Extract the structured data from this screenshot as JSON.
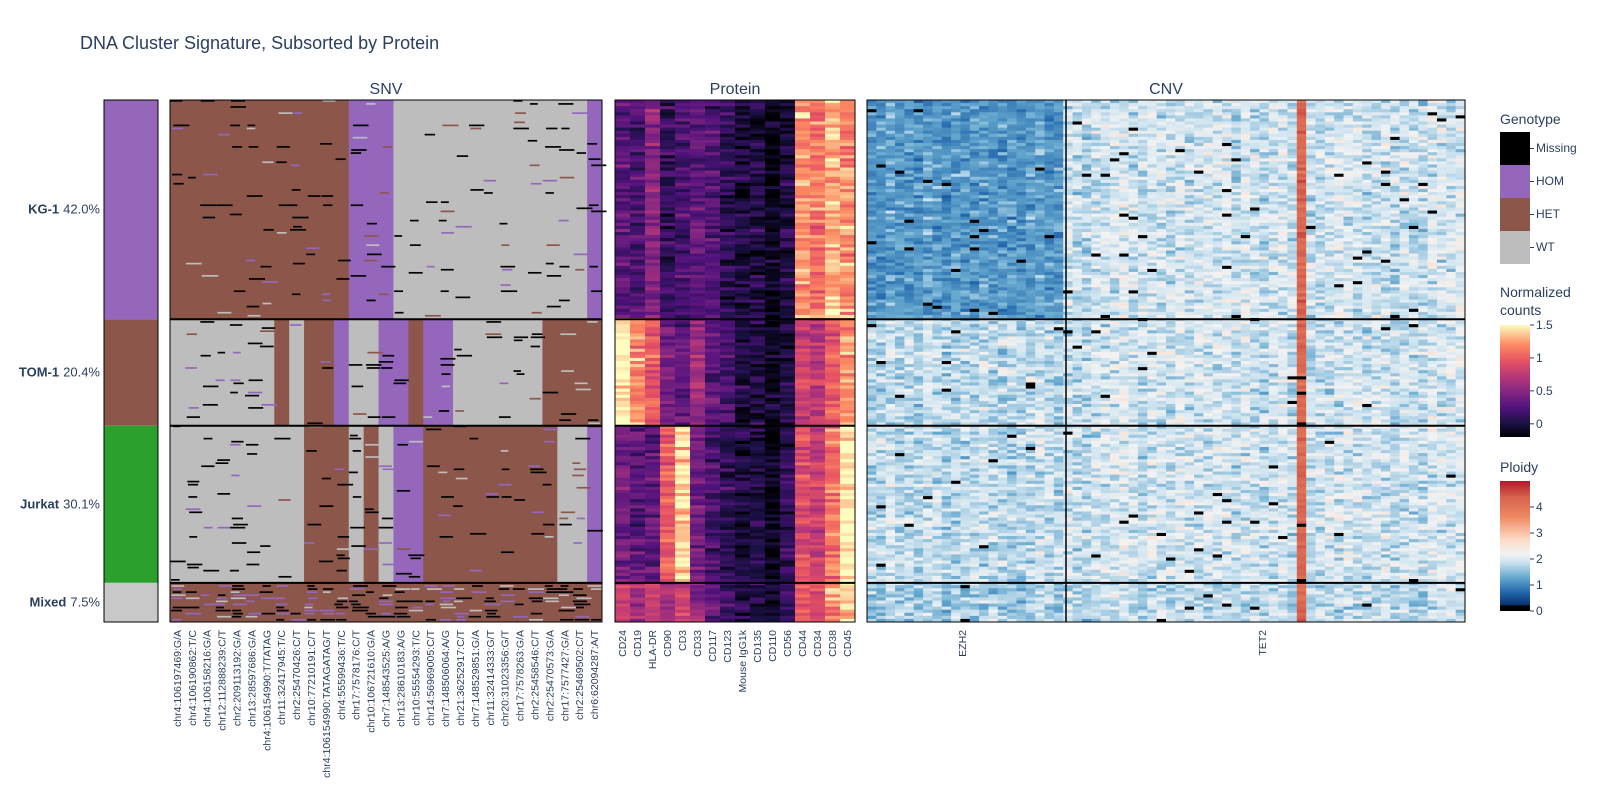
{
  "chart_data": {
    "type": "heatmap",
    "title": "DNA Cluster Signature, Subsorted by Protein",
    "clusters": [
      {
        "name": "KG-1",
        "percent": "42.0%",
        "color": "#9467bd"
      },
      {
        "name": "TOM-1",
        "percent": "20.4%",
        "color": "#8c564b"
      },
      {
        "name": "Jurkat",
        "percent": "30.1%",
        "color": "#2ca02c"
      },
      {
        "name": "Mixed",
        "percent": "7.5%",
        "color": "#c8c8c8"
      }
    ],
    "panels": [
      {
        "title": "SNV",
        "columns": [
          "chr4:106197469:G/A",
          "chr4:106190862:T/C",
          "chr4:106158216:G/A",
          "chr12:112888239:C/T",
          "chr2:209113192:G/A",
          "chr13:28597686:G/A",
          "chr4:106154990:T/TATAG",
          "chr11:32417945:T/C",
          "chr2:25470426:C/T",
          "chr10:77210191:C/T",
          "chr4:106154990:TATAGATAG/T",
          "chr4:55599436:T/C",
          "chr17:7578176:C/T",
          "chr10:106721610:G/A",
          "chr7:148543525:A/G",
          "chr13:28610183:A/G",
          "chr10:55554293:T/C",
          "chr14:56969005:C/T",
          "chr7:148506064:A/G",
          "chr21:36252917:C/T",
          "chr7:148529851:G/A",
          "chr11:32414333:G/T",
          "chr20:31023356:G/T",
          "chr17:7578263:G/A",
          "chr2:25458546:C/T",
          "chr2:25470573:G/A",
          "chr17:7577427:G/A",
          "chr2:25469502:C/T",
          "chr6:62094287:A/T"
        ],
        "cluster_genotypes": [
          [
            "HET",
            "HET",
            "HET",
            "HET",
            "HET",
            "HET",
            "HET",
            "HET",
            "HET",
            "HET",
            "HET",
            "HET",
            "HOM",
            "HOM",
            "HOM",
            "WT",
            "WT",
            "WT",
            "WT",
            "WT",
            "WT",
            "WT",
            "WT",
            "WT",
            "WT",
            "WT",
            "WT",
            "WT",
            "HOM"
          ],
          [
            "WT",
            "WT",
            "WT",
            "WT",
            "WT",
            "WT",
            "WT",
            "HET",
            "WT",
            "HET",
            "HET",
            "HOM",
            "WT",
            "WT",
            "HOM",
            "HOM",
            "HET",
            "HOM",
            "HOM",
            "WT",
            "WT",
            "WT",
            "WT",
            "WT",
            "WT",
            "HET",
            "HET",
            "HET",
            "HET"
          ],
          [
            "WT",
            "WT",
            "WT",
            "WT",
            "WT",
            "WT",
            "WT",
            "WT",
            "WT",
            "HET",
            "HET",
            "HET",
            "WT",
            "HET",
            "WT",
            "HOM",
            "HOM",
            "HET",
            "HET",
            "HET",
            "HET",
            "HET",
            "HET",
            "HET",
            "HET",
            "HET",
            "WT",
            "WT",
            "HOM"
          ],
          [
            "HET",
            "HET",
            "HET",
            "HET",
            "HET",
            "HET",
            "HET",
            "HET",
            "HET",
            "HET",
            "HET",
            "HET",
            "HET",
            "HET",
            "HET",
            "HET",
            "HET",
            "HET",
            "HET",
            "HET",
            "HET",
            "HET",
            "HET",
            "HET",
            "HET",
            "HET",
            "HET",
            "HET",
            "HET"
          ]
        ]
      },
      {
        "title": "Protein",
        "columns": [
          "CD24",
          "CD19",
          "HLA-DR",
          "CD90",
          "CD3",
          "CD33",
          "CD117",
          "CD123",
          "Mouse IgG1k",
          "CD135",
          "CD110",
          "CD56",
          "CD44",
          "CD34",
          "CD38",
          "CD45"
        ],
        "cluster_mean_values": [
          [
            0.3,
            0.2,
            0.5,
            0.1,
            0.2,
            0.3,
            0.25,
            0.1,
            0.0,
            0.0,
            -0.1,
            0.0,
            1.2,
            1.1,
            1.3,
            1.2
          ],
          [
            1.5,
            1.2,
            1.0,
            0.4,
            0.3,
            0.6,
            0.3,
            0.2,
            0.0,
            0.0,
            -0.1,
            0.0,
            0.8,
            0.7,
            1.0,
            1.2
          ],
          [
            0.4,
            0.3,
            0.3,
            1.0,
            1.4,
            0.4,
            0.2,
            0.1,
            0.0,
            0.05,
            -0.1,
            0.1,
            0.9,
            0.8,
            1.1,
            1.5
          ],
          [
            0.8,
            0.6,
            0.8,
            0.6,
            0.8,
            0.5,
            0.3,
            0.2,
            0.0,
            0.0,
            -0.1,
            0.1,
            1.0,
            0.9,
            1.2,
            1.3
          ]
        ]
      },
      {
        "title": "CNV",
        "columns": [
          "EZH2",
          "TET2"
        ],
        "cluster_mean_ploidy": [
          [
            1.4,
            2.1
          ],
          [
            2.0,
            2.1
          ],
          [
            2.0,
            2.1
          ],
          [
            1.9,
            2.0
          ]
        ]
      }
    ],
    "legends": {
      "genotype": {
        "title": "Genotype",
        "entries": [
          {
            "label": "Missing",
            "color": "#000000"
          },
          {
            "label": "HOM",
            "color": "#9467bd"
          },
          {
            "label": "HET",
            "color": "#8c564b"
          },
          {
            "label": "WT",
            "color": "#bdbdbd"
          }
        ]
      },
      "protein": {
        "title_line1": "Normalized",
        "title_line2": "counts",
        "range": [
          -0.2,
          1.5
        ],
        "ticks": [
          "1.5",
          "1",
          "0.5",
          "0"
        ],
        "tick_values": [
          1.5,
          1.0,
          0.5,
          0.0
        ]
      },
      "ploidy": {
        "title": "Ploidy",
        "range": [
          0,
          5
        ],
        "ticks": [
          "4",
          "3",
          "2",
          "1",
          "0"
        ],
        "tick_values": [
          4,
          3,
          2,
          1,
          0
        ]
      }
    }
  }
}
